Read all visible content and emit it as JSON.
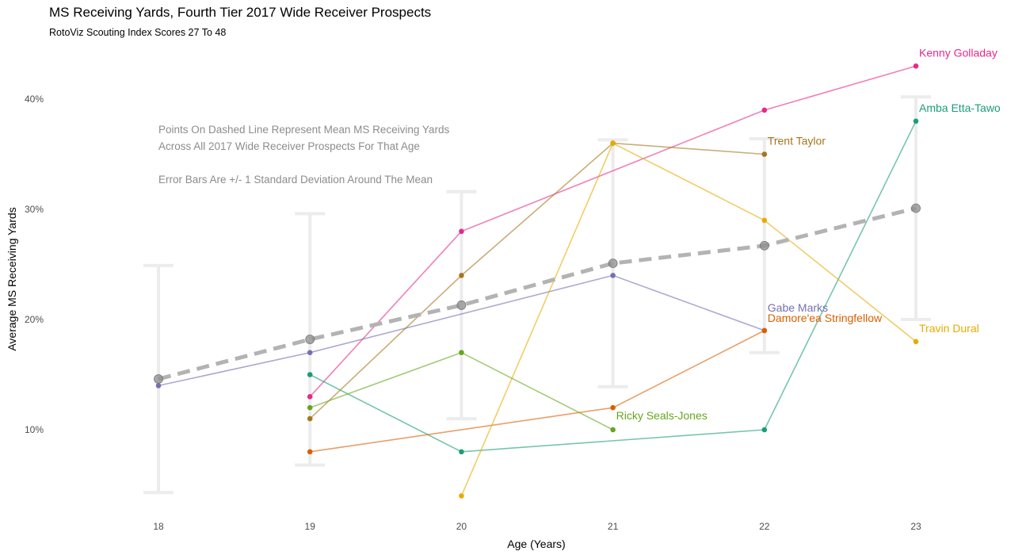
{
  "chart_data": {
    "type": "line",
    "title": "MS Receiving Yards, Fourth Tier 2017 Wide Receiver Prospects",
    "subtitle": "RotoViz Scouting Index Scores 27 To 48",
    "xlabel": "Age (Years)",
    "ylabel": "Average MS Receiving Yards",
    "x_ticks": [
      18,
      19,
      20,
      21,
      22,
      23
    ],
    "y_ticks": [
      10,
      20,
      30,
      40
    ],
    "y_tick_labels": [
      "10%",
      "20%",
      "30%",
      "40%"
    ],
    "xlim": [
      17.55,
      23.6
    ],
    "ylim": [
      2.5,
      45.5
    ],
    "grid": false,
    "notes": [
      "Points On Dashed Line Represent Mean MS Receiving Yards",
      "Across All 2017 Wide Receiver Prospects For That Age",
      "Error Bars Are +/- 1 Standard Deviation Around The Mean"
    ],
    "mean_line": {
      "x": [
        18,
        19,
        20,
        21,
        22,
        23
      ],
      "mean": [
        14.6,
        18.2,
        21.3,
        25.1,
        26.7,
        30.1
      ],
      "lower": [
        4.3,
        6.8,
        11.0,
        13.9,
        17.0,
        20.0
      ],
      "upper": [
        24.9,
        29.6,
        31.6,
        36.3,
        36.4,
        40.2
      ],
      "color": "#999999"
    },
    "series": [
      {
        "name": "Kenny Golladay",
        "color": "#E7298A",
        "x": [
          19,
          20,
          22,
          23
        ],
        "values": [
          13.0,
          28.0,
          39.0,
          43.0
        ]
      },
      {
        "name": "Amba Etta-Tawo",
        "color": "#1B9E77",
        "x": [
          19,
          20,
          22,
          23
        ],
        "values": [
          15.0,
          8.0,
          10.0,
          38.0
        ]
      },
      {
        "name": "Trent Taylor",
        "color": "#A6761D",
        "x": [
          19,
          20,
          21,
          22
        ],
        "values": [
          11.0,
          24.0,
          36.0,
          35.0
        ]
      },
      {
        "name": "Gabe Marks",
        "color": "#7570B3",
        "x": [
          18,
          19,
          21,
          22
        ],
        "values": [
          14.0,
          17.0,
          24.0,
          19.0
        ]
      },
      {
        "name": "Damore'ea Stringfellow",
        "color": "#D95F02",
        "x": [
          19,
          21,
          22
        ],
        "values": [
          8.0,
          12.0,
          19.0
        ]
      },
      {
        "name": "Travin Dural",
        "color": "#E6AB02",
        "x": [
          20,
          21,
          22,
          23
        ],
        "values": [
          4.0,
          36.0,
          29.0,
          18.0
        ]
      },
      {
        "name": "Ricky Seals-Jones",
        "color": "#66A61E",
        "x": [
          19,
          20,
          21
        ],
        "values": [
          12.0,
          17.0,
          10.0
        ]
      }
    ]
  }
}
